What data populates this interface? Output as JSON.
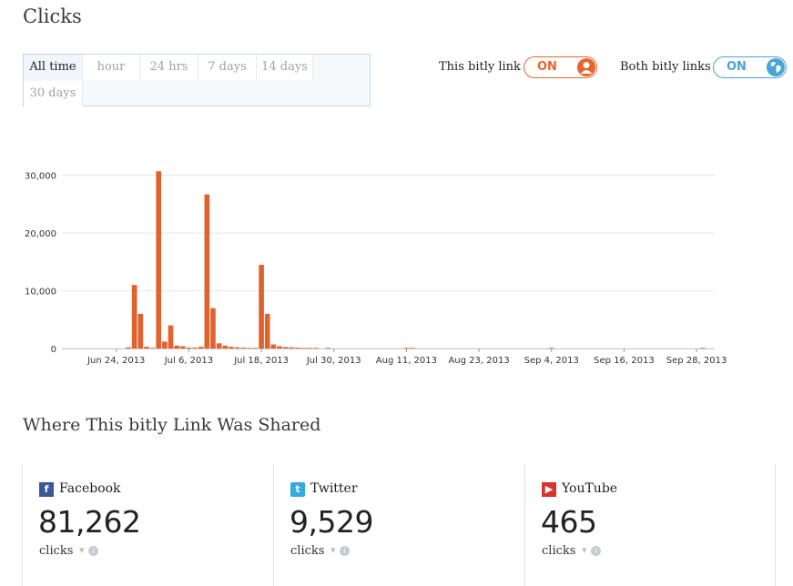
{
  "header": {
    "title": "Clicks"
  },
  "time_range": {
    "options": [
      {
        "label": "All time",
        "active": true
      },
      {
        "label": "hour",
        "active": false
      },
      {
        "label": "24 hrs",
        "active": false
      },
      {
        "label": "7 days",
        "active": false
      },
      {
        "label": "14 days",
        "active": false
      },
      {
        "label": "30 days",
        "active": false
      }
    ]
  },
  "toggles": {
    "this_link": {
      "label": "This bitly link",
      "value": "ON",
      "color": "#e8642e",
      "icon": "user-icon"
    },
    "both_links": {
      "label": "Both bitly links",
      "value": "ON",
      "color": "#4aa3d6",
      "icon": "globe-icon"
    }
  },
  "chart_data": {
    "type": "bar",
    "bar_color": "#e2622e",
    "ylim": [
      0,
      32000
    ],
    "y_ticks": [
      0,
      10000,
      20000,
      30000
    ],
    "y_tick_labels": [
      "0",
      "10,000",
      "20,000",
      "30,000"
    ],
    "x_tick_labels": [
      "Jun 24, 2013",
      "Jul 6, 2013",
      "Jul 18, 2013",
      "Jul 30, 2013",
      "Aug 11, 2013",
      "Aug 23, 2013",
      "Sep 4, 2013",
      "Sep 16, 2013",
      "Sep 28, 2013"
    ],
    "x_tick_dates": [
      "2013-06-24",
      "2013-07-06",
      "2013-07-18",
      "2013-07-30",
      "2013-08-11",
      "2013-08-23",
      "2013-09-04",
      "2013-09-16",
      "2013-09-28"
    ],
    "x_range": [
      "2013-06-15",
      "2013-10-01"
    ],
    "points": [
      [
        "2013-06-26",
        200
      ],
      [
        "2013-06-27",
        11000
      ],
      [
        "2013-06-28",
        6000
      ],
      [
        "2013-06-29",
        300
      ],
      [
        "2013-06-30",
        100
      ],
      [
        "2013-07-01",
        30700
      ],
      [
        "2013-07-02",
        1200
      ],
      [
        "2013-07-03",
        4000
      ],
      [
        "2013-07-04",
        500
      ],
      [
        "2013-07-05",
        400
      ],
      [
        "2013-07-06",
        150
      ],
      [
        "2013-07-07",
        150
      ],
      [
        "2013-07-08",
        300
      ],
      [
        "2013-07-09",
        26700
      ],
      [
        "2013-07-10",
        7000
      ],
      [
        "2013-07-11",
        900
      ],
      [
        "2013-07-12",
        500
      ],
      [
        "2013-07-13",
        300
      ],
      [
        "2013-07-14",
        200
      ],
      [
        "2013-07-15",
        150
      ],
      [
        "2013-07-16",
        100
      ],
      [
        "2013-07-17",
        100
      ],
      [
        "2013-07-18",
        14500
      ],
      [
        "2013-07-19",
        6000
      ],
      [
        "2013-07-20",
        700
      ],
      [
        "2013-07-21",
        400
      ],
      [
        "2013-07-22",
        250
      ],
      [
        "2013-07-23",
        200
      ],
      [
        "2013-07-24",
        150
      ],
      [
        "2013-07-25",
        100
      ],
      [
        "2013-07-26",
        100
      ],
      [
        "2013-07-27",
        100
      ],
      [
        "2013-07-29",
        100
      ],
      [
        "2013-08-11",
        120
      ],
      [
        "2013-08-12",
        100
      ],
      [
        "2013-09-04",
        100
      ],
      [
        "2013-09-29",
        100
      ],
      [
        "2013-10-01",
        150
      ],
      [
        "2013-10-02",
        150
      ]
    ]
  },
  "shared": {
    "title": "Where This bitly Link Was Shared",
    "cards": [
      {
        "name": "Facebook",
        "count": "81,262",
        "unit": "clicks",
        "icon": "facebook-icon",
        "color": "#3b5998",
        "glyph": "f"
      },
      {
        "name": "Twitter",
        "count": "9,529",
        "unit": "clicks",
        "icon": "twitter-icon",
        "color": "#33aae1",
        "glyph": "t"
      },
      {
        "name": "YouTube",
        "count": "465",
        "unit": "clicks",
        "icon": "youtube-icon",
        "color": "#d9342c",
        "glyph": "▶"
      }
    ]
  }
}
